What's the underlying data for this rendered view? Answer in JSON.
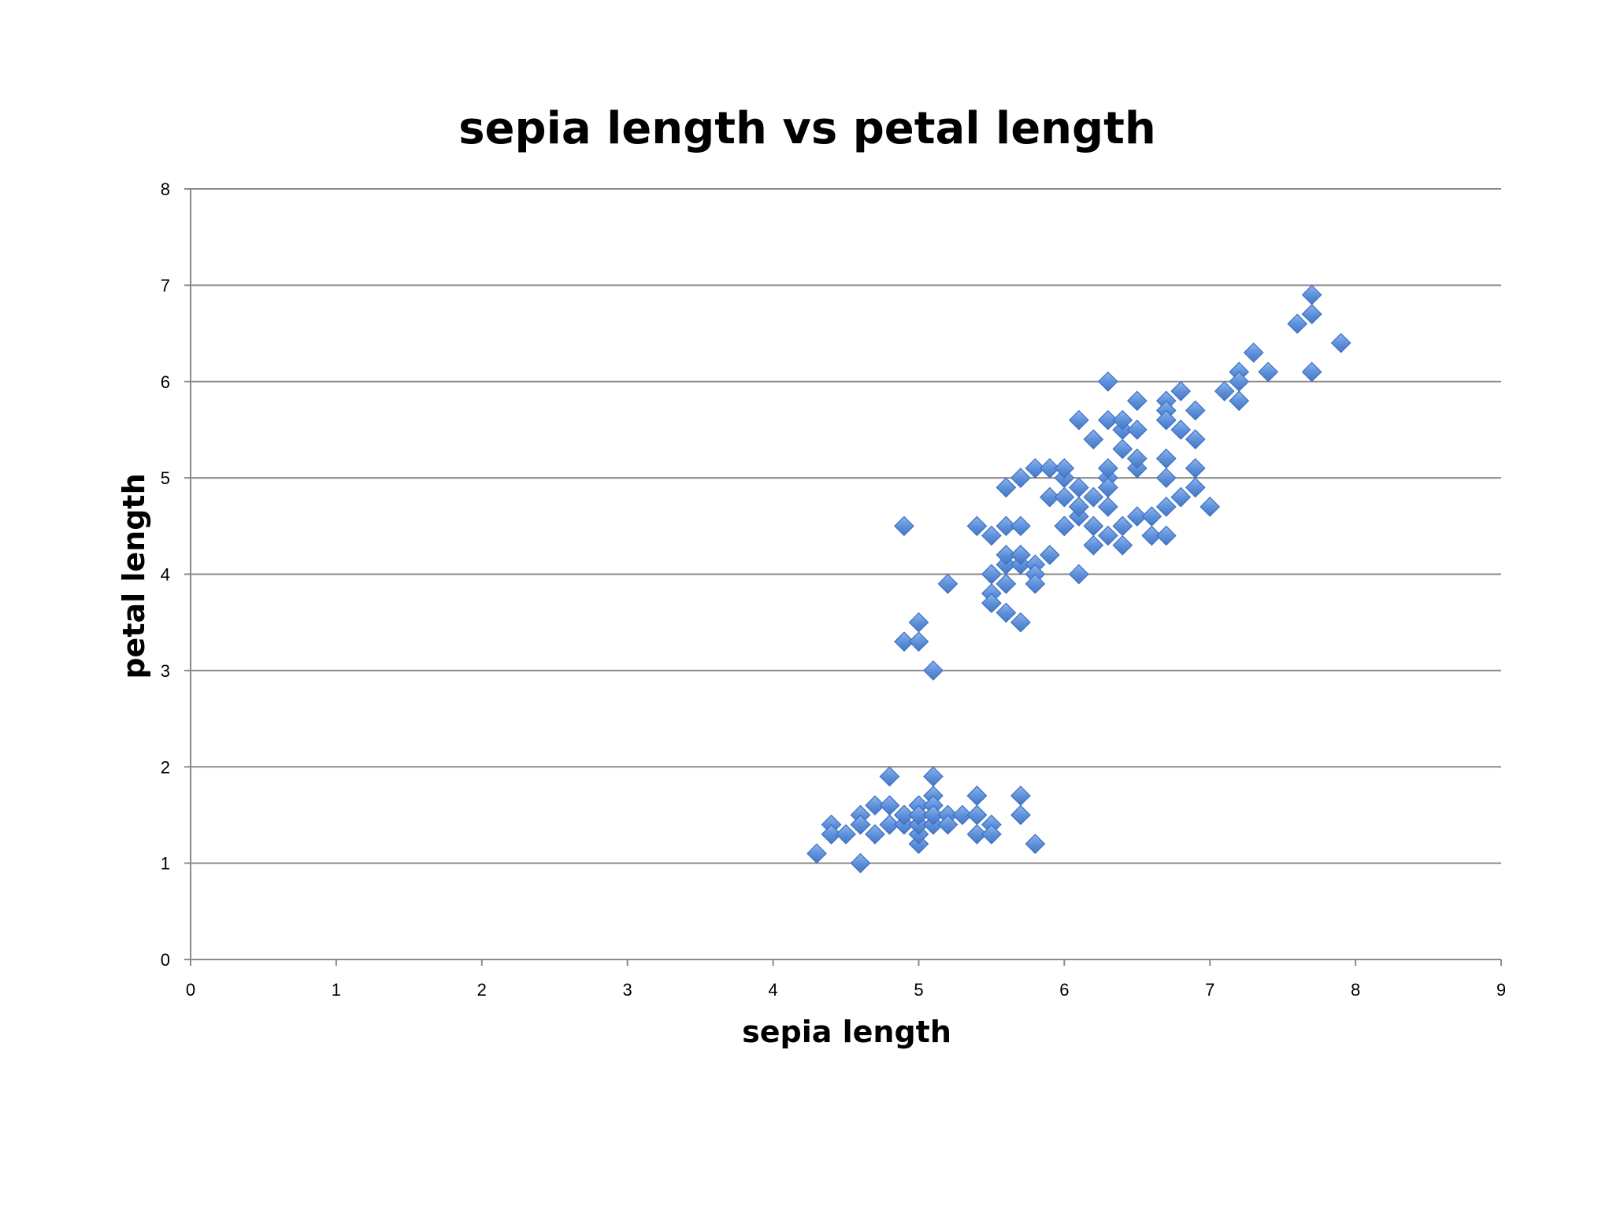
{
  "chart_data": {
    "type": "scatter",
    "title": "sepia length vs petal length",
    "xlabel": "sepia length",
    "ylabel": "petal length",
    "xlim": [
      0,
      9
    ],
    "ylim": [
      0,
      8
    ],
    "x_ticks": [
      "0",
      "1",
      "2",
      "3",
      "4",
      "5",
      "6",
      "7",
      "8",
      "9"
    ],
    "y_ticks": [
      "0",
      "1",
      "2",
      "3",
      "4",
      "5",
      "6",
      "7",
      "8"
    ],
    "grid": "horizontal",
    "legend": "none",
    "marker": "diamond",
    "color": "#5b8fd9",
    "series": [
      {
        "x": [
          4.3,
          4.4,
          4.4,
          4.4,
          4.5,
          4.6,
          4.6,
          4.6,
          4.6,
          4.7,
          4.7,
          4.8,
          4.8,
          4.8,
          4.8,
          4.8,
          4.9,
          4.9,
          4.9,
          4.9,
          5.0,
          5.0,
          5.0,
          5.0,
          5.0,
          5.0,
          5.0,
          5.0,
          5.1,
          5.1,
          5.1,
          5.1,
          5.1,
          5.1,
          5.1,
          5.1,
          5.2,
          5.2,
          5.2,
          5.3,
          5.4,
          5.4,
          5.4,
          5.4,
          5.4,
          5.5,
          5.5,
          5.7,
          5.7,
          5.8,
          4.9,
          4.9,
          5.0,
          5.0,
          5.1,
          5.2,
          5.4,
          5.5,
          5.5,
          5.5,
          5.5,
          5.5,
          5.6,
          5.6,
          5.6,
          5.6,
          5.6,
          5.6,
          5.7,
          5.7,
          5.7,
          5.7,
          5.7,
          5.7,
          5.8,
          5.8,
          5.8,
          5.8,
          5.9,
          5.9,
          5.9,
          6.0,
          6.0,
          6.0,
          6.0,
          6.0,
          6.1,
          6.1,
          6.1,
          6.1,
          6.1,
          6.1,
          6.2,
          6.2,
          6.2,
          6.2,
          6.3,
          6.3,
          6.3,
          6.3,
          6.3,
          6.3,
          6.3,
          6.3,
          6.4,
          6.4,
          6.4,
          6.4,
          6.4,
          6.4,
          6.5,
          6.5,
          6.5,
          6.5,
          6.5,
          6.6,
          6.6,
          6.7,
          6.7,
          6.7,
          6.7,
          6.7,
          6.7,
          6.7,
          6.7,
          6.8,
          6.8,
          6.8,
          6.9,
          6.9,
          6.9,
          6.9,
          7.0,
          7.1,
          7.2,
          7.2,
          7.2,
          7.3,
          7.4,
          7.6,
          7.7,
          7.7,
          7.7,
          7.7,
          7.9
        ],
        "y": [
          1.1,
          1.4,
          1.3,
          1.3,
          1.3,
          1.0,
          1.4,
          1.5,
          1.4,
          1.3,
          1.6,
          1.9,
          1.6,
          1.4,
          1.6,
          1.4,
          1.4,
          1.5,
          1.5,
          1.5,
          1.2,
          1.6,
          1.5,
          1.3,
          1.4,
          1.6,
          1.4,
          1.5,
          1.9,
          1.5,
          1.4,
          1.5,
          1.7,
          1.4,
          1.6,
          1.5,
          1.5,
          1.5,
          1.4,
          1.5,
          1.7,
          1.3,
          1.5,
          1.5,
          1.7,
          1.4,
          1.3,
          1.5,
          1.7,
          1.2,
          4.5,
          3.3,
          3.5,
          3.3,
          3.0,
          3.9,
          4.5,
          4.0,
          4.4,
          3.8,
          3.7,
          4.0,
          4.1,
          4.5,
          3.9,
          4.2,
          3.6,
          4.9,
          3.5,
          4.5,
          4.2,
          4.1,
          4.2,
          5.0,
          4.1,
          4.0,
          3.9,
          5.1,
          4.8,
          5.1,
          4.2,
          4.5,
          4.5,
          4.8,
          5.0,
          5.1,
          4.7,
          4.6,
          4.9,
          4.0,
          5.6,
          4.7,
          4.5,
          4.3,
          5.4,
          4.8,
          4.7,
          4.9,
          5.0,
          4.4,
          5.6,
          6.0,
          5.1,
          4.9,
          4.3,
          4.5,
          5.3,
          5.5,
          5.5,
          5.6,
          4.6,
          5.8,
          5.1,
          5.2,
          5.5,
          4.4,
          4.6,
          4.4,
          4.7,
          5.0,
          5.6,
          5.8,
          5.7,
          5.2,
          5.6,
          5.9,
          4.8,
          5.5,
          4.9,
          5.1,
          5.4,
          5.7,
          4.7,
          5.9,
          5.8,
          6.1,
          6.0,
          6.3,
          6.1,
          6.6,
          6.7,
          6.9,
          6.7,
          6.1,
          6.4
        ]
      }
    ]
  }
}
